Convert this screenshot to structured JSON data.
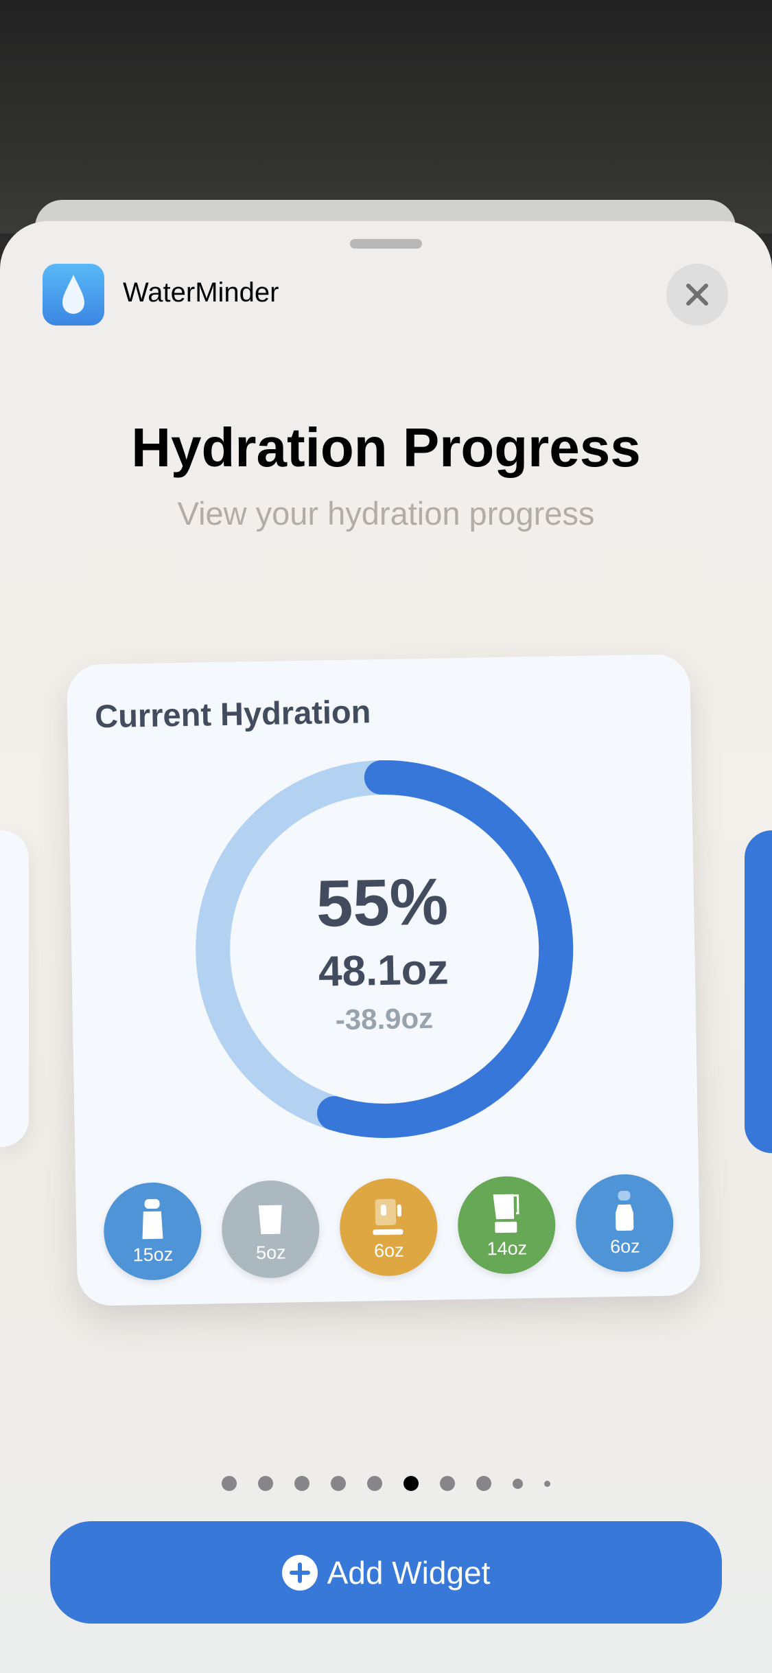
{
  "app": {
    "name": "WaterMinder",
    "icon": "water-drop-icon"
  },
  "header": {
    "title": "Hydration Progress",
    "subtitle": "View your hydration progress",
    "close_icon": "close-icon"
  },
  "widget": {
    "title": "Current Hydration",
    "progress_percent": 55,
    "percent_label": "55%",
    "consumed": "48.1oz",
    "remaining": "-38.9oz",
    "colors": {
      "progress": "#3677d9",
      "track": "#b3d2f1",
      "text": "#434c5e",
      "muted": "#98a3ae"
    },
    "drinks": [
      {
        "label": "15oz",
        "icon": "shaker-bottle-icon",
        "color": "#4f94d6"
      },
      {
        "label": "5oz",
        "icon": "cup-icon",
        "color": "#acb8bf"
      },
      {
        "label": "6oz",
        "icon": "tea-mug-icon",
        "color": "#dea742"
      },
      {
        "label": "14oz",
        "icon": "blender-icon",
        "color": "#67a856"
      },
      {
        "label": "6oz",
        "icon": "baby-bottle-icon",
        "color": "#4f94d6"
      }
    ]
  },
  "pager": {
    "count": 10,
    "active_index": 5
  },
  "add_button": {
    "label": "Add Widget",
    "icon": "plus-circle-icon",
    "color": "#3778d8"
  }
}
